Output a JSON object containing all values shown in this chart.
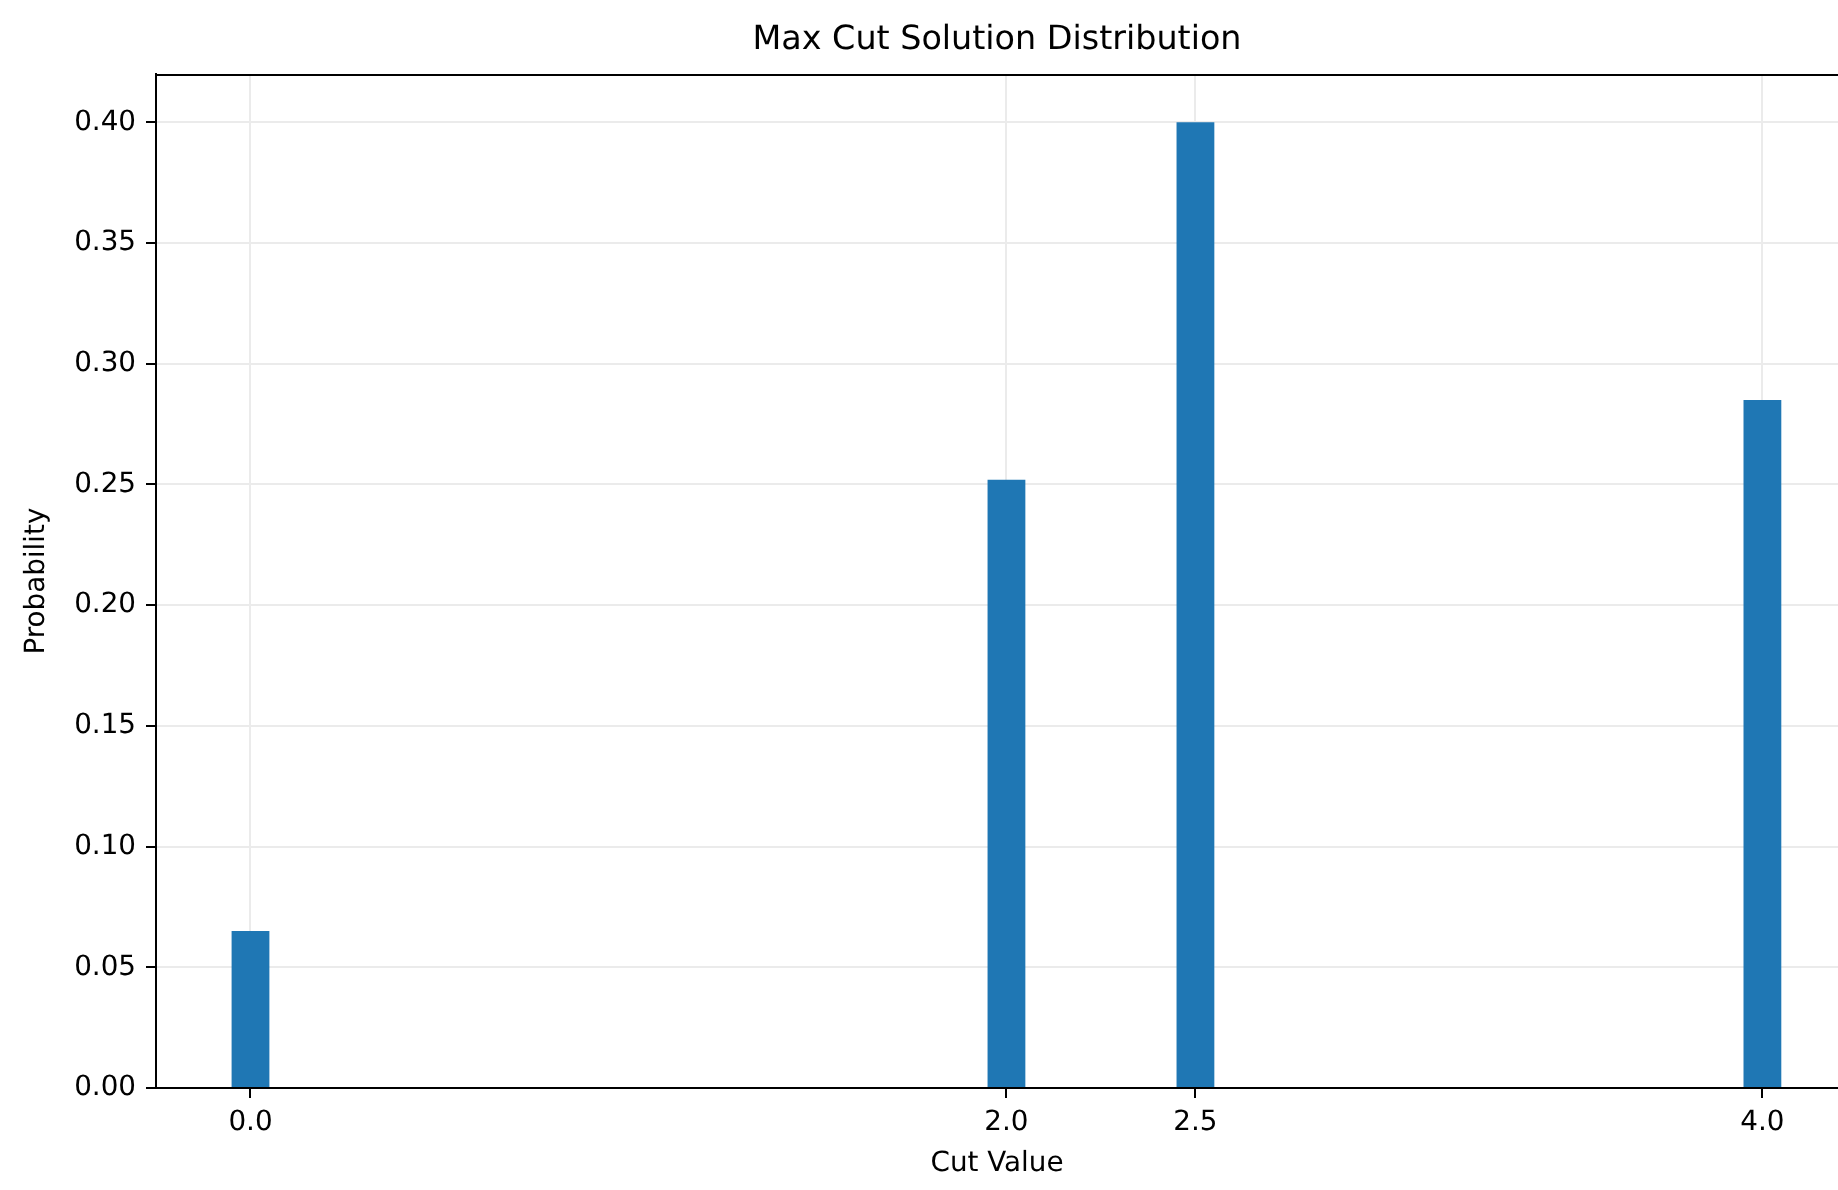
{
  "chart_data": {
    "type": "bar",
    "title": "Max Cut Solution Distribution",
    "xlabel": "Cut Value",
    "ylabel": "Probability",
    "x": [
      0,
      2,
      2.5,
      4
    ],
    "values": [
      0.065,
      0.252,
      0.4,
      0.285
    ],
    "color": "#1f77b4",
    "xlim": [
      -0.25,
      4.2
    ],
    "xticks": [
      {
        "value": 0,
        "label": "0.0"
      },
      {
        "value": 2,
        "label": "2.0"
      },
      {
        "value": 2.5,
        "label": "2.5"
      },
      {
        "value": 4,
        "label": "4.0"
      }
    ],
    "ylim": [
      0,
      0.42
    ],
    "yticks": [
      {
        "value": 0,
        "label": "0.00"
      },
      {
        "value": 0.05,
        "label": "0.05"
      },
      {
        "value": 0.1,
        "label": "0.10"
      },
      {
        "value": 0.15,
        "label": "0.15"
      },
      {
        "value": 0.2,
        "label": "0.20"
      },
      {
        "value": 0.25,
        "label": "0.25"
      },
      {
        "value": 0.3,
        "label": "0.30"
      },
      {
        "value": 0.35,
        "label": "0.35"
      },
      {
        "value": 0.4,
        "label": "0.40"
      }
    ],
    "grid": true,
    "legend": false
  }
}
